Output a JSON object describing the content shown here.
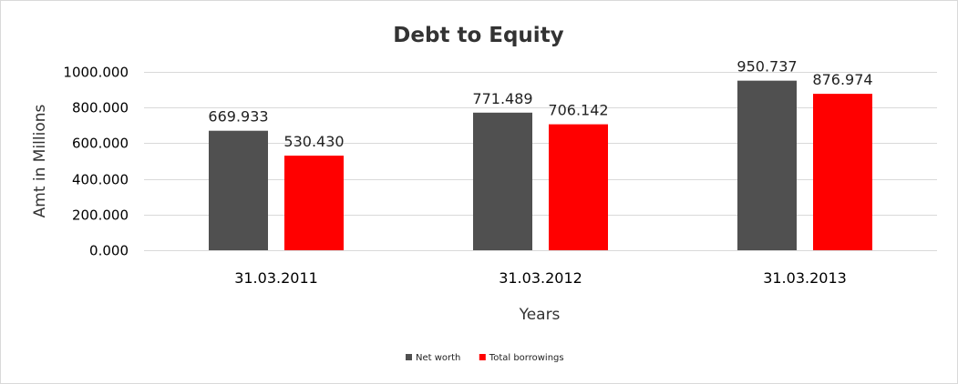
{
  "chart_data": {
    "type": "bar",
    "title": "Debt to Equity",
    "xlabel": "Years",
    "ylabel": "Amt in Millions",
    "categories": [
      "31.03.2011",
      "31.03.2012",
      "31.03.2013"
    ],
    "series": [
      {
        "name": "Net worth",
        "color": "#505050",
        "values": [
          669.933,
          771.489,
          950.737
        ],
        "labels": [
          "669.933",
          "771.489",
          "950.737"
        ]
      },
      {
        "name": "Total borrowings",
        "color": "#ff0000",
        "values": [
          530.43,
          706.142,
          876.974
        ],
        "labels": [
          "530.430",
          "706.142",
          "876.974"
        ]
      }
    ],
    "yticks": [
      0,
      200,
      400,
      600,
      800,
      1000
    ],
    "ytick_labels": [
      "0.000",
      "200.000",
      "400.000",
      "600.000",
      "800.000",
      "1000.000"
    ],
    "ylim": [
      0,
      1000
    ],
    "grid": true,
    "legend": "bottom-center"
  }
}
